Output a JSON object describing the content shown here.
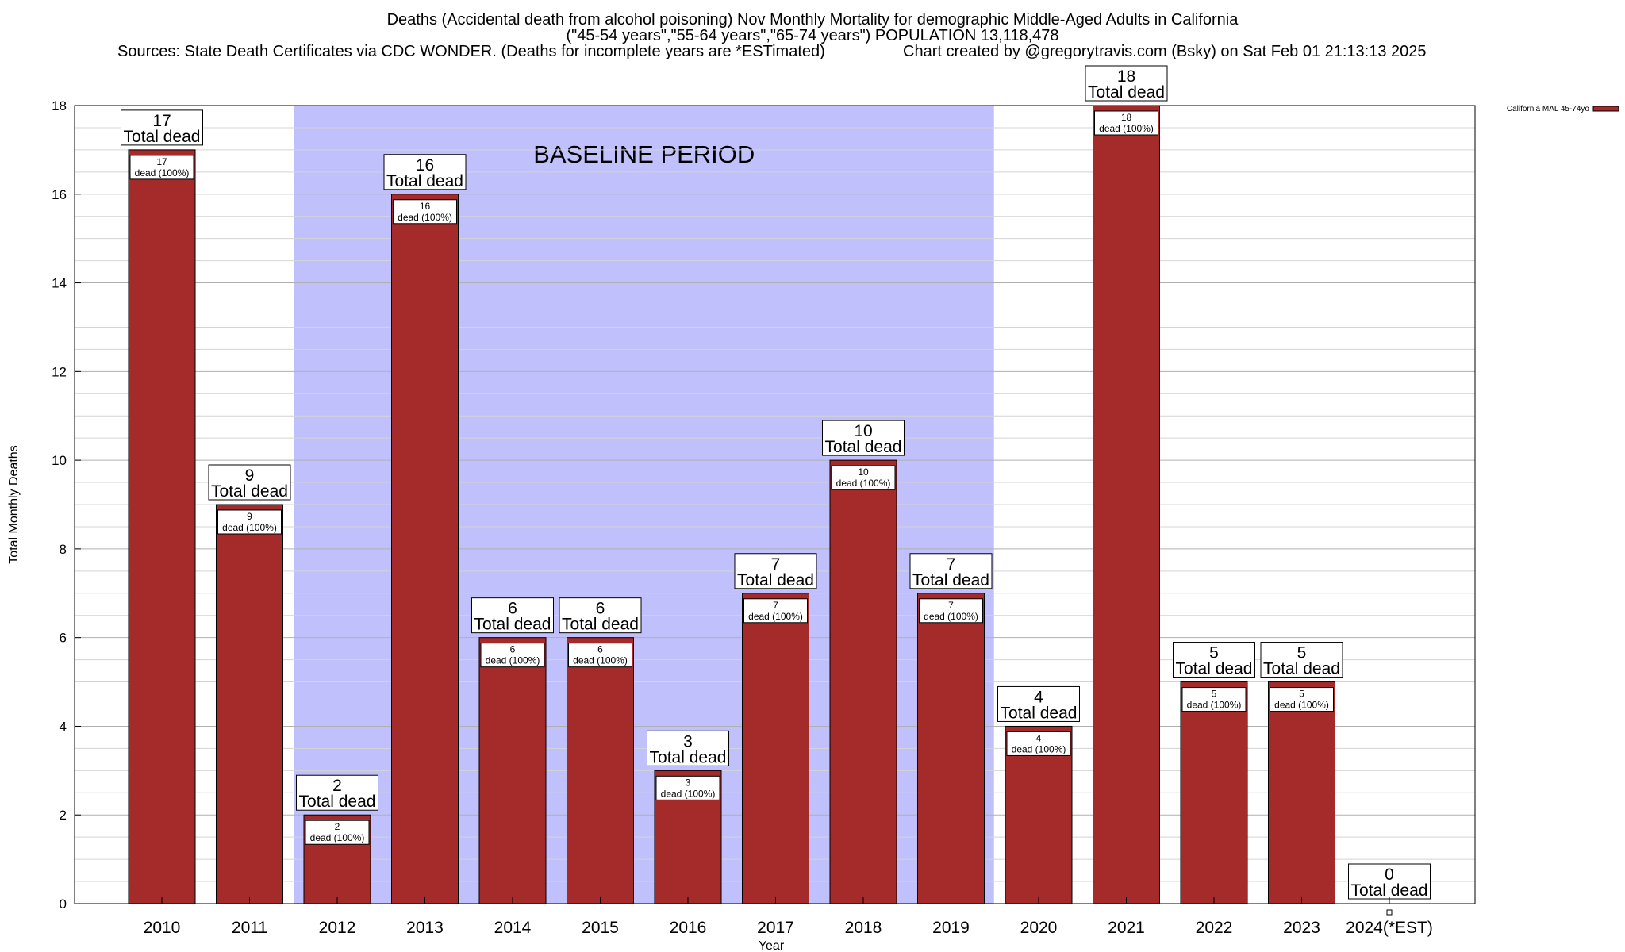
{
  "chart_data": {
    "type": "bar",
    "title": "Deaths (Accidental death from alcohol poisoning) Nov Monthly Mortality for demographic Middle-Aged Adults in California",
    "subtitle": "(\"45-54 years\",\"55-64 years\",\"65-74 years\") POPULATION 13,118,478",
    "sources": "Sources: State Death Certificates via CDC WONDER. (Deaths for incomplete years are *ESTimated)",
    "credit": "Chart created by @gregorytravis.com (Bsky) on Sat Feb 01 21:13:13 2025",
    "xlabel": "Year",
    "ylabel": "Total Monthly Deaths",
    "ylim": [
      0,
      18
    ],
    "yticks": [
      0,
      2,
      4,
      6,
      8,
      10,
      12,
      14,
      16,
      18
    ],
    "grid": true,
    "categories": [
      "2010",
      "2011",
      "2012",
      "2013",
      "2014",
      "2015",
      "2016",
      "2017",
      "2018",
      "2019",
      "2020",
      "2021",
      "2022",
      "2023",
      "2024(*EST)"
    ],
    "series": [
      {
        "name": "California MAL 45-74yo",
        "color": "#a52a2a",
        "values": [
          17,
          9,
          2,
          16,
          6,
          6,
          3,
          7,
          10,
          7,
          4,
          18,
          5,
          5,
          0
        ]
      }
    ],
    "total_label": "Total dead",
    "segment_label_suffix": "dead (100%)",
    "baseline": {
      "label": "BASELINE PERIOD",
      "start": "2012",
      "end": "2019",
      "color": "#c0c0fc"
    },
    "legend_placement": "top-right"
  }
}
